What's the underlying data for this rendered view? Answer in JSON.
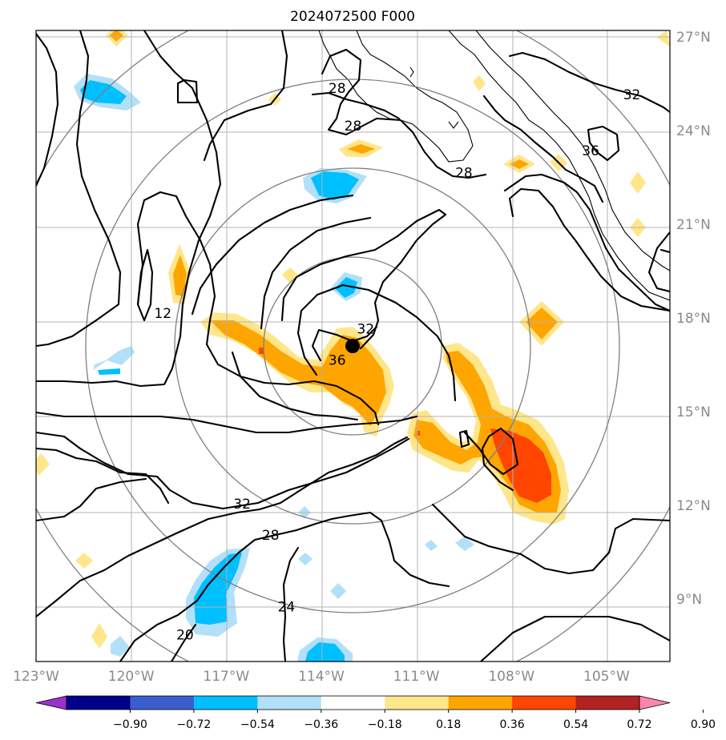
{
  "title": "2024072500 F000",
  "map": {
    "lon_range": [
      -123,
      -103
    ],
    "lat_range": [
      7,
      27.2
    ],
    "lon_ticks": [
      {
        "lon": -123,
        "label": "123°W"
      },
      {
        "lon": -120,
        "label": "120°W"
      },
      {
        "lon": -117,
        "label": "117°W"
      },
      {
        "lon": -114,
        "label": "114°W"
      },
      {
        "lon": -111,
        "label": "111°W"
      },
      {
        "lon": -108,
        "label": "108°W"
      },
      {
        "lon": -105,
        "label": "105°W"
      }
    ],
    "lat_ticks": [
      {
        "lat": 27,
        "label": "27°N"
      },
      {
        "lat": 24,
        "label": "24°N"
      },
      {
        "lat": 21,
        "label": "21°N"
      },
      {
        "lat": 18,
        "label": "18°N"
      },
      {
        "lat": 15,
        "label": "15°N"
      },
      {
        "lat": 12,
        "label": "12°N"
      },
      {
        "lat": 9,
        "label": "9°N"
      }
    ],
    "storm_center": {
      "lon": -113.1,
      "lat": 17.2
    },
    "range_rings_deg": [
      2.8,
      5.6,
      8.4,
      11.2
    ],
    "contour_labels": [
      {
        "text": "28",
        "lon": -113.5,
        "lat": 25.2
      },
      {
        "text": "28",
        "lon": -113.0,
        "lat": 24.0
      },
      {
        "text": "28",
        "lon": -109.5,
        "lat": 22.5
      },
      {
        "text": "32",
        "lon": -104.2,
        "lat": 25.0
      },
      {
        "text": "36",
        "lon": -105.5,
        "lat": 23.2
      },
      {
        "text": "12",
        "lon": -119.0,
        "lat": 18.0
      },
      {
        "text": "32",
        "lon": -112.6,
        "lat": 17.5
      },
      {
        "text": "36",
        "lon": -113.5,
        "lat": 16.5
      },
      {
        "text": "32",
        "lon": -116.5,
        "lat": 11.9
      },
      {
        "text": "28",
        "lon": -115.6,
        "lat": 10.9
      },
      {
        "text": "24",
        "lon": -115.1,
        "lat": 8.6
      },
      {
        "text": "20",
        "lon": -118.3,
        "lat": 7.7
      }
    ]
  },
  "colorbar": {
    "levels": [
      "−0.90",
      "−0.72",
      "−0.54",
      "−0.36",
      "−0.18",
      "0.18",
      "0.36",
      "0.54",
      "0.72",
      "0.90"
    ],
    "colors": [
      "#9932cc",
      "#00008b",
      "#3a5fcd",
      "#00bfff",
      "#b2e0f8",
      "#ffffff",
      "#ffe68a",
      "#ffa500",
      "#ff4500",
      "#b22222",
      "#ff85b0"
    ]
  },
  "colors": {
    "light_yellow": "#ffe68a",
    "orange": "#ffa500",
    "red_orange": "#ff4500",
    "light_blue": "#b2e0f8",
    "blue": "#00bfff"
  }
}
